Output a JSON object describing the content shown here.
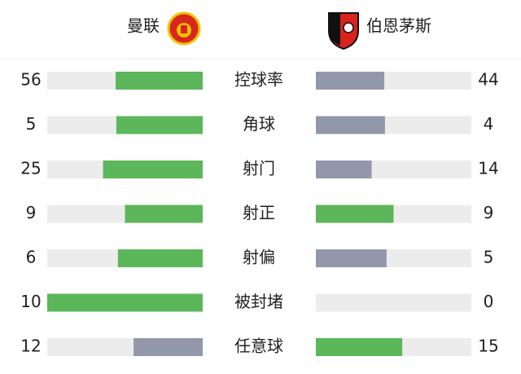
{
  "header": {
    "home_team": "曼联",
    "away_team": "伯恩茅斯"
  },
  "stats": [
    {
      "label": "控球率",
      "home": 56,
      "away": 44
    },
    {
      "label": "角球",
      "home": 5,
      "away": 4
    },
    {
      "label": "射门",
      "home": 25,
      "away": 14
    },
    {
      "label": "射正",
      "home": 9,
      "away": 9
    },
    {
      "label": "射偏",
      "home": 6,
      "away": 5
    },
    {
      "label": "被封堵",
      "home": 10,
      "away": 0
    },
    {
      "label": "任意球",
      "home": 12,
      "away": 15
    }
  ]
}
